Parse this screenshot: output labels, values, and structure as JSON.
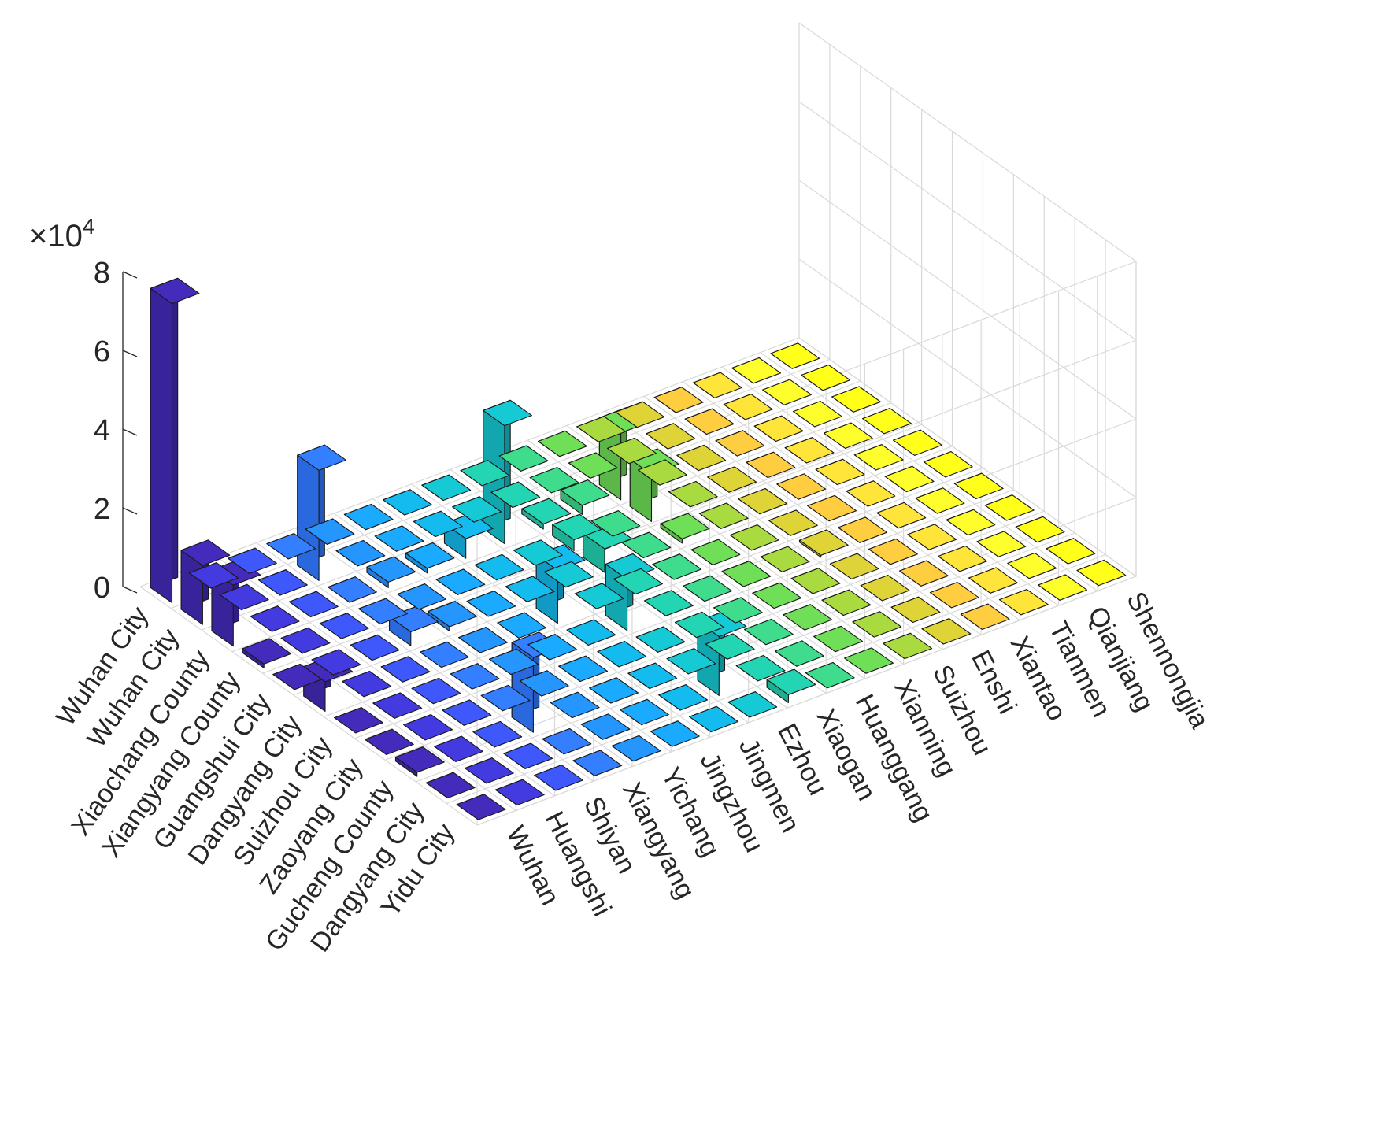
{
  "chart_data": {
    "type": "bar3",
    "title": "",
    "zlim": [
      0,
      80000
    ],
    "zticks": [
      0,
      2,
      4,
      6,
      8
    ],
    "zExponentLabel": {
      "base": "×10",
      "exponent": "4"
    },
    "colormap": [
      "#3d26a8",
      "#3b3bd6",
      "#2f6ff0",
      "#1d8ef5",
      "#10a5d9",
      "#15b8b8",
      "#2bc38a",
      "#6cc847",
      "#b8bf2e",
      "#f2b63a",
      "#fad930",
      "#f9f917"
    ],
    "rows": [
      "Wuhan City",
      "Wuhan City",
      "Xiaochang County",
      "Xiangyang County",
      "Guangshui City",
      "Dangyang City",
      "Suizhou City",
      "Zaoyang City",
      "Gucheng County",
      "Dangyang City",
      "Yidu City"
    ],
    "columns": [
      "Wuhan",
      "Huangshi",
      "Shiyan",
      "Xiangyang",
      "Yichang",
      "Jingzhou",
      "Jingmen",
      "Ezhou",
      "Xiaogan",
      "Huanggang",
      "Xianning",
      "Suizhou",
      "Enshi",
      "Xiantao",
      "Tianmen",
      "Qianjiang",
      "Shennongjia"
    ],
    "values": [
      [
        76000,
        0,
        0,
        0,
        0,
        0,
        0,
        0,
        0,
        0,
        0,
        0,
        0,
        0,
        0,
        0,
        0
      ],
      [
        15000,
        0,
        0,
        28000,
        0,
        0,
        0,
        0,
        0,
        0,
        0,
        0,
        0,
        0,
        0,
        0,
        0
      ],
      [
        15500,
        0,
        0,
        0,
        1400,
        1200,
        5000,
        30000,
        1300,
        2300,
        17000,
        0,
        0,
        0,
        0,
        0,
        0
      ],
      [
        1000,
        0,
        0,
        0,
        0,
        0,
        0,
        0,
        2800,
        0,
        12000,
        0,
        0,
        0,
        0,
        0,
        0
      ],
      [
        0,
        0,
        0,
        3500,
        1100,
        0,
        0,
        0,
        6000,
        0,
        1100,
        0,
        0,
        0,
        0,
        0,
        0
      ],
      [
        7500,
        0,
        0,
        0,
        0,
        0,
        13500,
        0,
        0,
        0,
        0,
        0,
        0,
        0,
        0,
        0,
        0
      ],
      [
        0,
        0,
        0,
        0,
        0,
        0,
        0,
        13000,
        0,
        0,
        0,
        0,
        500,
        0,
        0,
        0,
        0
      ],
      [
        0,
        0,
        0,
        0,
        0,
        0,
        0,
        0,
        0,
        0,
        0,
        0,
        0,
        0,
        0,
        0,
        0
      ],
      [
        1000,
        0,
        0,
        19000,
        0,
        0,
        0,
        0,
        0,
        0,
        0,
        0,
        0,
        0,
        0,
        0,
        0
      ],
      [
        0,
        0,
        0,
        0,
        0,
        0,
        0,
        15000,
        0,
        0,
        0,
        0,
        0,
        0,
        0,
        0,
        0
      ],
      [
        0,
        0,
        0,
        0,
        0,
        0,
        0,
        0,
        2000,
        0,
        0,
        0,
        0,
        0,
        0,
        0,
        0
      ]
    ]
  }
}
